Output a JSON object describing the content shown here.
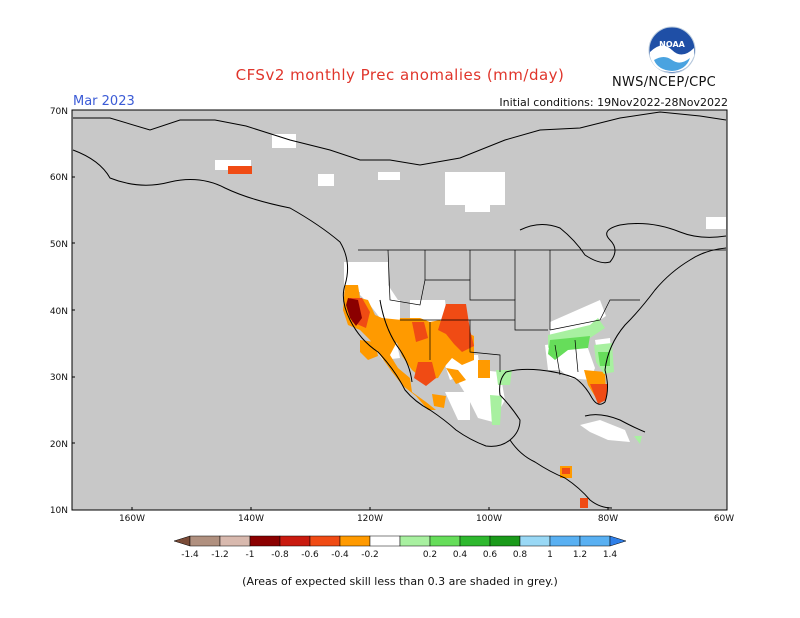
{
  "header": {
    "title": "CFSv2 monthly Prec anomalies (mm/day)",
    "valid_month": "Mar 2023",
    "initial_conditions": "Initial conditions: 19Nov2022-28Nov2022",
    "agency": "NWS/NCEP/CPC",
    "logo_text": "NOAA"
  },
  "map": {
    "lat_ticks": [
      "70N",
      "60N",
      "50N",
      "40N",
      "30N",
      "20N",
      "10N"
    ],
    "lon_ticks": [
      "160W",
      "140W",
      "120W",
      "100W",
      "80W",
      "60W"
    ],
    "lat_range": [
      10,
      70
    ],
    "lon_range": [
      -170,
      -60
    ],
    "mask_color": "#c8c8c8",
    "land_line_color": "#000000"
  },
  "colorbar": {
    "labels": [
      "-1.4",
      "-1.2",
      "-1",
      "-0.8",
      "-0.6",
      "-0.4",
      "-0.2",
      "0.2",
      "0.4",
      "0.6",
      "0.8",
      "1",
      "1.2",
      "1.4"
    ],
    "colors": [
      "#7a4b37",
      "#b0907f",
      "#d8b9ae",
      "#8b0000",
      "#c91a0f",
      "#f04b14",
      "#ff9a00",
      "#ffffff",
      "#a8f0a0",
      "#66dd5a",
      "#2eb82e",
      "#1a9a1a",
      "#99d8f5",
      "#59b0f2",
      "#2f7fe8"
    ]
  },
  "footnote": "(Areas of expected skill less than 0.3 are shaded in grey.)"
}
